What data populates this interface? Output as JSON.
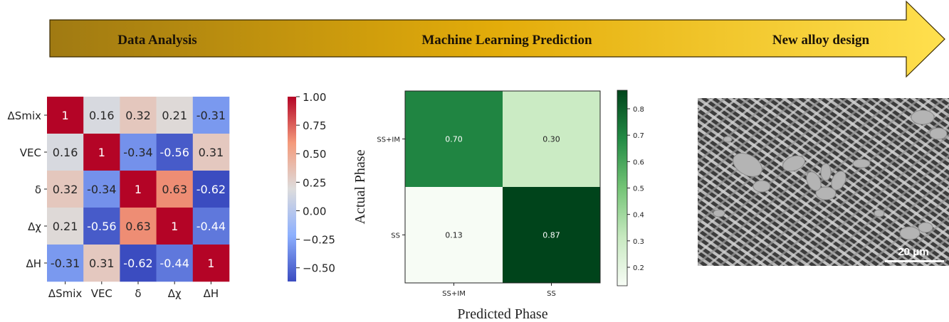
{
  "banner": {
    "steps": [
      "Data Analysis",
      "Machine Learning  Prediction",
      "New alloy design"
    ],
    "colors": {
      "start": "#a07a12",
      "mid": "#e3ac0a",
      "end": "#ffe04e"
    }
  },
  "micrograph": {
    "scale_bar_label": "20 μm"
  },
  "chart_data": [
    {
      "type": "heatmap",
      "title": "",
      "xlabel": "",
      "ylabel": "",
      "x_categories": [
        "ΔSmix",
        "VEC",
        "δ",
        "Δχ",
        "ΔH"
      ],
      "y_categories": [
        "ΔSmix",
        "VEC",
        "δ",
        "Δχ",
        "ΔH"
      ],
      "values": [
        [
          1,
          0.16,
          0.32,
          0.21,
          -0.31
        ],
        [
          0.16,
          1,
          -0.34,
          -0.56,
          0.31
        ],
        [
          0.32,
          -0.34,
          1,
          0.63,
          -0.62
        ],
        [
          0.21,
          -0.56,
          0.63,
          1,
          -0.44
        ],
        [
          -0.31,
          0.31,
          -0.62,
          -0.44,
          1
        ]
      ],
      "cell_labels": [
        [
          "1",
          "0.16",
          "0.32",
          "0.21",
          "-0.31"
        ],
        [
          "0.16",
          "1",
          "-0.34",
          "-0.56",
          "0.31"
        ],
        [
          "0.32",
          "-0.34",
          "1",
          "0.63",
          "-0.62"
        ],
        [
          "0.21",
          "-0.56",
          "0.63",
          "1",
          "-0.44"
        ],
        [
          "-0.31",
          "0.31",
          "-0.62",
          "-0.44",
          "1"
        ]
      ],
      "colormap": "coolwarm",
      "colorbar": {
        "range": [
          -0.62,
          1.0
        ],
        "ticks": [
          1.0,
          0.75,
          0.5,
          0.25,
          0.0,
          -0.25,
          -0.5
        ],
        "tick_labels": [
          "1.00",
          "0.75",
          "0.50",
          "0.25",
          "0.00",
          "−0.25",
          "−0.50"
        ]
      }
    },
    {
      "type": "heatmap",
      "title": "",
      "xlabel": "Predicted Phase",
      "ylabel": "Actual Phase",
      "x_categories": [
        "SS+IM",
        "SS"
      ],
      "y_categories": [
        "SS+IM",
        "SS"
      ],
      "values": [
        [
          0.7,
          0.3
        ],
        [
          0.13,
          0.87
        ]
      ],
      "cell_labels": [
        [
          "0.70",
          "0.30"
        ],
        [
          "0.13",
          "0.87"
        ]
      ],
      "colormap": "Greens",
      "colorbar": {
        "range": [
          0.13,
          0.87
        ],
        "ticks": [
          0.8,
          0.7,
          0.6,
          0.5,
          0.4,
          0.3,
          0.2
        ],
        "tick_labels": [
          "0.8",
          "0.7",
          "0.6",
          "0.5",
          "0.4",
          "0.3",
          "0.2"
        ]
      }
    }
  ]
}
